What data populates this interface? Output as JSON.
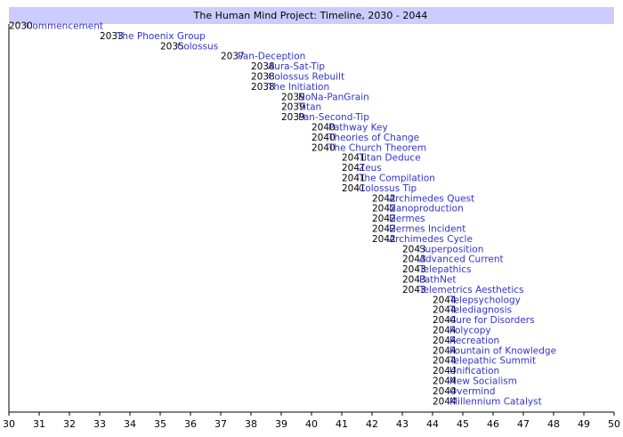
{
  "colors": {
    "title_band": "#ccccff",
    "link": "#3333cc",
    "text": "#000000",
    "axis": "#000000",
    "ticks": "#000000"
  },
  "chart_data": {
    "type": "timeline",
    "title": "The Human Mind Project: Timeline, 2030 - 2044",
    "xlabel": "",
    "ylabel": "",
    "xlim": [
      30,
      50
    ],
    "x_ticks": [
      30,
      31,
      32,
      33,
      34,
      35,
      36,
      37,
      38,
      39,
      40,
      41,
      42,
      43,
      44,
      45,
      46,
      47,
      48,
      49,
      50
    ],
    "grid": false,
    "events": [
      {
        "x": 30,
        "year": "2030",
        "label": "Commencement"
      },
      {
        "x": 33,
        "year": "2033",
        "label": "The Phoenix Group"
      },
      {
        "x": 35,
        "year": "2035",
        "label": "Colossus"
      },
      {
        "x": 37,
        "year": "2037",
        "label": "Pan-Deception"
      },
      {
        "x": 38,
        "year": "2038",
        "label": "Aura-Sat-Tip"
      },
      {
        "x": 38,
        "year": "2038",
        "label": "Colossus Rebuilt"
      },
      {
        "x": 38,
        "year": "2038",
        "label": "The Initiation"
      },
      {
        "x": 39,
        "year": "2039",
        "label": "NoNa-PanGrain"
      },
      {
        "x": 39,
        "year": "2039",
        "label": "Titan"
      },
      {
        "x": 39,
        "year": "2039",
        "label": "Pan-Second-Tip"
      },
      {
        "x": 40,
        "year": "2040",
        "label": "Pathway Key"
      },
      {
        "x": 40,
        "year": "2040",
        "label": "Theories of Change"
      },
      {
        "x": 40,
        "year": "2040",
        "label": "The Church Theorem"
      },
      {
        "x": 41,
        "year": "2041",
        "label": "Titan Deduce"
      },
      {
        "x": 41,
        "year": "2041",
        "label": "Zeus"
      },
      {
        "x": 41,
        "year": "2041",
        "label": "The Compilation"
      },
      {
        "x": 41,
        "year": "2041",
        "label": "Colossus Tip"
      },
      {
        "x": 42,
        "year": "2042",
        "label": "Archimedes Quest"
      },
      {
        "x": 42,
        "year": "2042",
        "label": "Nanoproduction"
      },
      {
        "x": 42,
        "year": "2042",
        "label": "Hermes"
      },
      {
        "x": 42,
        "year": "2042",
        "label": "Hermes Incident"
      },
      {
        "x": 42,
        "year": "2042",
        "label": "Archimedes Cycle"
      },
      {
        "x": 43,
        "year": "2043",
        "label": "Superposition"
      },
      {
        "x": 43,
        "year": "2043",
        "label": "Advanced Current"
      },
      {
        "x": 43,
        "year": "2043",
        "label": "Telepathics"
      },
      {
        "x": 43,
        "year": "2043",
        "label": "PathNet"
      },
      {
        "x": 43,
        "year": "2043",
        "label": "Telemetrics Aesthetics"
      },
      {
        "x": 44,
        "year": "2044",
        "label": "Telepsychology"
      },
      {
        "x": 44,
        "year": "2044",
        "label": "Telediagnosis"
      },
      {
        "x": 44,
        "year": "2044",
        "label": "Cure for Disorders"
      },
      {
        "x": 44,
        "year": "2044",
        "label": "Polycopy"
      },
      {
        "x": 44,
        "year": "2044",
        "label": "Recreation"
      },
      {
        "x": 44,
        "year": "2044",
        "label": "Fountain of Knowledge"
      },
      {
        "x": 44,
        "year": "2044",
        "label": "Telepathic Summit"
      },
      {
        "x": 44,
        "year": "2044",
        "label": "Unification"
      },
      {
        "x": 44,
        "year": "2044",
        "label": "New Socialism"
      },
      {
        "x": 44,
        "year": "2044",
        "label": "Overmind"
      },
      {
        "x": 44,
        "year": "2044",
        "label": "Millennium Catalyst"
      }
    ]
  }
}
